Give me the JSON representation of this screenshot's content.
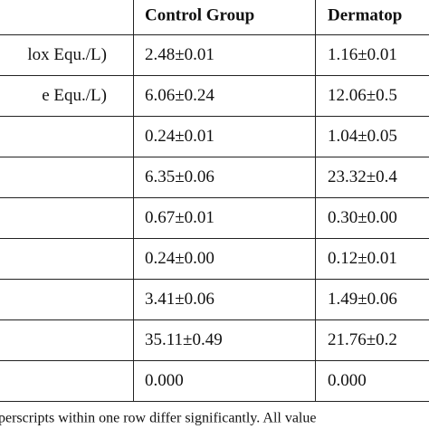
{
  "table": {
    "header": [
      "Control Group",
      "Dermatop"
    ],
    "row_labels": [
      "lox Equ./L)",
      "e Equ./L)"
    ],
    "control": [
      "2.48±0.01",
      "6.06±0.24",
      "0.24±0.01",
      "6.35±0.06",
      "0.67±0.01",
      "0.24±0.00",
      "3.41±0.06",
      "35.11±0.49",
      "0.000"
    ],
    "dermatop": [
      "1.16±0.01",
      "12.06±0.5",
      "1.04±0.05",
      "23.32±0.4",
      "0.30±0.00",
      "0.12±0.01",
      "1.49±0.06",
      "21.76±0.2",
      "0.000"
    ]
  },
  "footnote": "perscripts within one row differ significantly. All value"
}
